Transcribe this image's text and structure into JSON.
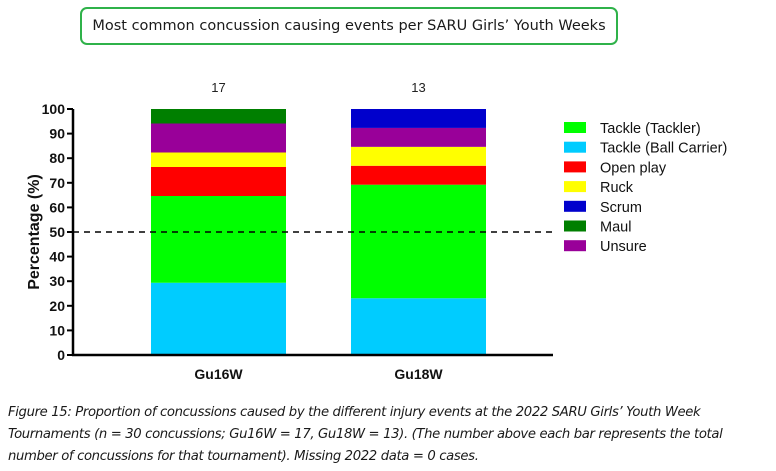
{
  "chart_data": {
    "type": "bar",
    "stacked": true,
    "title": "Most common concussion causing events per SARU Girls’ Youth Weeks",
    "xlabel": "",
    "ylabel": "Percentage (%)",
    "ylim": [
      0,
      100
    ],
    "yticks": [
      0,
      10,
      20,
      30,
      40,
      50,
      60,
      70,
      80,
      90,
      100
    ],
    "categories": [
      "Gu16W",
      "Gu18W"
    ],
    "totals_above_bars": [
      "17",
      "13"
    ],
    "reference_line": {
      "y": 50,
      "style": "dashed"
    },
    "legend_position": "right",
    "series": [
      {
        "name": "Tackle (Ball Carrier)",
        "color": "#00ccff",
        "values": [
          29.4,
          23.1
        ]
      },
      {
        "name": "Tackle (Tackler)",
        "color": "#00ff00",
        "values": [
          35.3,
          46.2
        ]
      },
      {
        "name": "Open play",
        "color": "#ff0000",
        "values": [
          11.8,
          7.7
        ]
      },
      {
        "name": "Ruck",
        "color": "#ffff00",
        "values": [
          5.9,
          7.7
        ]
      },
      {
        "name": "Unsure",
        "color": "#990099",
        "values": [
          11.8,
          7.7
        ]
      },
      {
        "name": "Scrum",
        "color": "#0000cc",
        "values": [
          0,
          7.7
        ]
      },
      {
        "name": "Maul",
        "color": "#007f00",
        "values": [
          5.9,
          0
        ]
      }
    ],
    "legend_order": [
      "Tackle (Tackler)",
      "Tackle (Ball Carrier)",
      "Open play",
      "Ruck",
      "Scrum",
      "Maul",
      "Unsure"
    ]
  },
  "caption": "Figure 15: Proportion of concussions caused by the different injury events at the 2022 SARU Girls’ Youth Week Tournaments (n = 30 concussions; Gu16W = 17, Gu18W = 13). (The number above each bar represents the total number of concussions for that tournament). Missing 2022 data = 0 cases."
}
